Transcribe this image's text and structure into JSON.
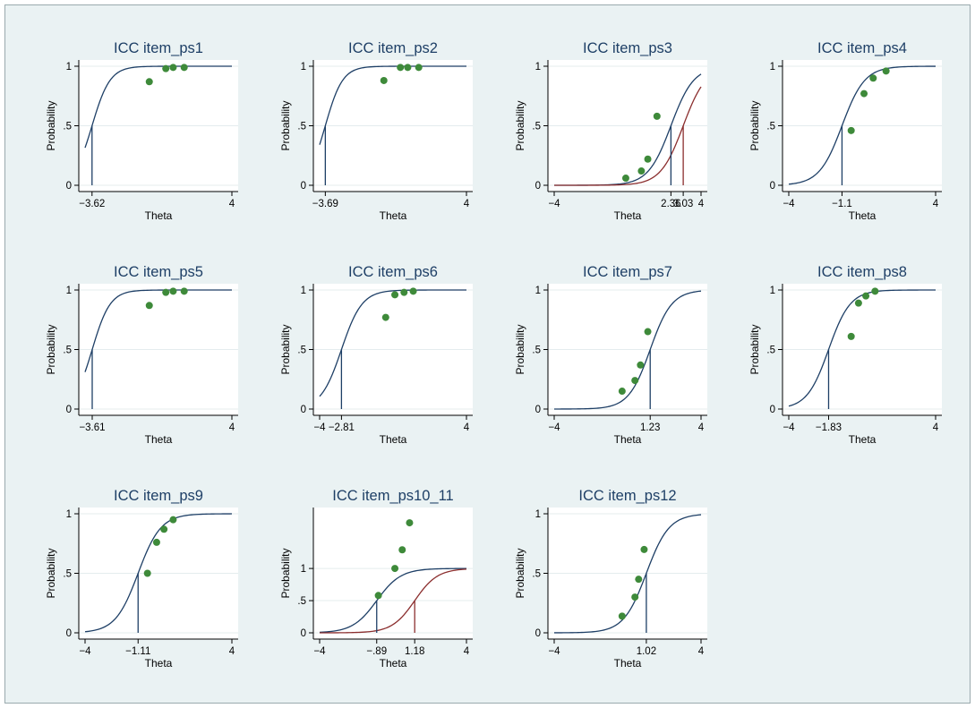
{
  "colors": {
    "panel_bg": "#ffffff",
    "figure_bg": "#eaf2f3",
    "curve_primary": "#1e3f66",
    "curve_secondary": "#8b2e2e",
    "points": "#3e8a3a",
    "grid": "#e4ecee"
  },
  "axis_text": {
    "xlabel": "Theta",
    "ylabel": "Probability"
  },
  "chart_data": [
    {
      "type": "line",
      "title": "ICC item_ps1",
      "xlabel": "Theta",
      "ylabel": "Probability",
      "xlim": [
        -4,
        4
      ],
      "ylim": [
        0,
        1
      ],
      "grid": true,
      "xticks": [
        {
          "v": -3.62,
          "t": "−3.62"
        },
        {
          "v": 4,
          "t": "4"
        }
      ],
      "yticks": [
        {
          "v": 0,
          "t": "0"
        },
        {
          "v": 0.5,
          "t": ".5"
        },
        {
          "v": 1,
          "t": "1"
        }
      ],
      "curves": [
        {
          "a": 1.2,
          "b": -3.62,
          "color": "primary"
        }
      ],
      "thresholds": [
        {
          "x": -3.62,
          "color": "primary"
        }
      ],
      "points": [
        [
          -0.5,
          0.87
        ],
        [
          0.4,
          0.98
        ],
        [
          0.8,
          0.99
        ],
        [
          1.4,
          0.99
        ]
      ]
    },
    {
      "type": "line",
      "title": "ICC item_ps2",
      "xlabel": "Theta",
      "ylabel": "Probability",
      "xlim": [
        -4,
        4
      ],
      "ylim": [
        0,
        1
      ],
      "grid": true,
      "xticks": [
        {
          "v": -3.69,
          "t": "−3.69"
        },
        {
          "v": 4,
          "t": "4"
        }
      ],
      "yticks": [
        {
          "v": 0,
          "t": "0"
        },
        {
          "v": 0.5,
          "t": ".5"
        },
        {
          "v": 1,
          "t": "1"
        }
      ],
      "curves": [
        {
          "a": 1.25,
          "b": -3.69,
          "color": "primary"
        }
      ],
      "thresholds": [
        {
          "x": -3.69,
          "color": "primary"
        }
      ],
      "points": [
        [
          -0.5,
          0.88
        ],
        [
          0.4,
          0.99
        ],
        [
          0.8,
          0.99
        ],
        [
          1.4,
          0.99
        ]
      ]
    },
    {
      "type": "line",
      "title": "ICC item_ps3",
      "xlabel": "Theta",
      "ylabel": "Probability",
      "xlim": [
        -4,
        4
      ],
      "ylim": [
        0,
        1
      ],
      "grid": true,
      "xticks": [
        {
          "v": -4,
          "t": "−4"
        },
        {
          "v": 2.36,
          "t": "2.36"
        },
        {
          "v": 3.03,
          "t": "3.03"
        },
        {
          "v": 4,
          "t": "4"
        }
      ],
      "yticks": [
        {
          "v": 0,
          "t": "0"
        },
        {
          "v": 0.5,
          "t": ".5"
        },
        {
          "v": 1,
          "t": "1"
        }
      ],
      "curves": [
        {
          "a": 0.95,
          "b": 2.36,
          "color": "primary"
        },
        {
          "a": 0.95,
          "b": 3.03,
          "color": "secondary"
        }
      ],
      "thresholds": [
        {
          "x": 2.36,
          "color": "primary"
        },
        {
          "x": 3.03,
          "color": "secondary"
        }
      ],
      "points": [
        [
          -0.1,
          0.06
        ],
        [
          0.75,
          0.12
        ],
        [
          1.1,
          0.22
        ],
        [
          1.6,
          0.58
        ]
      ]
    },
    {
      "type": "line",
      "title": "ICC item_ps4",
      "xlabel": "Theta",
      "ylabel": "Probability",
      "xlim": [
        -4,
        4
      ],
      "ylim": [
        0,
        1
      ],
      "grid": true,
      "xticks": [
        {
          "v": -4,
          "t": "−4"
        },
        {
          "v": -1.1,
          "t": "−1.1"
        },
        {
          "v": 4,
          "t": "4"
        }
      ],
      "yticks": [
        {
          "v": 0,
          "t": "0"
        },
        {
          "v": 0.5,
          "t": ".5"
        },
        {
          "v": 1,
          "t": "1"
        }
      ],
      "curves": [
        {
          "a": 0.95,
          "b": -1.1,
          "color": "primary"
        }
      ],
      "thresholds": [
        {
          "x": -1.1,
          "color": "primary"
        }
      ],
      "points": [
        [
          -0.6,
          0.46
        ],
        [
          0.1,
          0.77
        ],
        [
          0.6,
          0.9
        ],
        [
          1.3,
          0.96
        ]
      ]
    },
    {
      "type": "line",
      "title": "ICC item_ps5",
      "xlabel": "Theta",
      "ylabel": "Probability",
      "xlim": [
        -4,
        4
      ],
      "ylim": [
        0,
        1
      ],
      "grid": true,
      "xticks": [
        {
          "v": -3.61,
          "t": "−3.61"
        },
        {
          "v": 4,
          "t": "4"
        }
      ],
      "yticks": [
        {
          "v": 0,
          "t": "0"
        },
        {
          "v": 0.5,
          "t": ".5"
        },
        {
          "v": 1,
          "t": "1"
        }
      ],
      "curves": [
        {
          "a": 1.2,
          "b": -3.61,
          "color": "primary"
        }
      ],
      "thresholds": [
        {
          "x": -3.61,
          "color": "primary"
        }
      ],
      "points": [
        [
          -0.5,
          0.87
        ],
        [
          0.4,
          0.98
        ],
        [
          0.8,
          0.99
        ],
        [
          1.4,
          0.99
        ]
      ]
    },
    {
      "type": "line",
      "title": "ICC item_ps6",
      "xlabel": "Theta",
      "ylabel": "Probability",
      "xlim": [
        -4,
        4
      ],
      "ylim": [
        0,
        1
      ],
      "grid": true,
      "xticks": [
        {
          "v": -4,
          "t": "−4"
        },
        {
          "v": -2.81,
          "t": "−2.81"
        },
        {
          "v": 4,
          "t": "4"
        }
      ],
      "yticks": [
        {
          "v": 0,
          "t": "0"
        },
        {
          "v": 0.5,
          "t": ".5"
        },
        {
          "v": 1,
          "t": "1"
        }
      ],
      "curves": [
        {
          "a": 1.05,
          "b": -2.81,
          "color": "primary"
        }
      ],
      "thresholds": [
        {
          "x": -2.81,
          "color": "primary"
        }
      ],
      "points": [
        [
          -0.4,
          0.77
        ],
        [
          0.1,
          0.96
        ],
        [
          0.6,
          0.98
        ],
        [
          1.1,
          0.99
        ]
      ]
    },
    {
      "type": "line",
      "title": "ICC item_ps7",
      "xlabel": "Theta",
      "ylabel": "Probability",
      "xlim": [
        -4,
        4
      ],
      "ylim": [
        0,
        1
      ],
      "grid": true,
      "xticks": [
        {
          "v": -4,
          "t": "−4"
        },
        {
          "v": 1.23,
          "t": "1.23"
        },
        {
          "v": 4,
          "t": "4"
        }
      ],
      "yticks": [
        {
          "v": 0,
          "t": "0"
        },
        {
          "v": 0.5,
          "t": ".5"
        },
        {
          "v": 1,
          "t": "1"
        }
      ],
      "curves": [
        {
          "a": 1.0,
          "b": 1.23,
          "color": "primary"
        }
      ],
      "thresholds": [
        {
          "x": 1.23,
          "color": "primary"
        }
      ],
      "points": [
        [
          -0.3,
          0.15
        ],
        [
          0.4,
          0.24
        ],
        [
          0.7,
          0.37
        ],
        [
          1.1,
          0.65
        ]
      ]
    },
    {
      "type": "line",
      "title": "ICC item_ps8",
      "xlabel": "Theta",
      "ylabel": "Probability",
      "xlim": [
        -4,
        4
      ],
      "ylim": [
        0,
        1
      ],
      "grid": true,
      "xticks": [
        {
          "v": -4,
          "t": "−4"
        },
        {
          "v": -1.83,
          "t": "−1.83"
        },
        {
          "v": 4,
          "t": "4"
        }
      ],
      "yticks": [
        {
          "v": 0,
          "t": "0"
        },
        {
          "v": 0.5,
          "t": ".5"
        },
        {
          "v": 1,
          "t": "1"
        }
      ],
      "curves": [
        {
          "a": 1.0,
          "b": -1.83,
          "color": "primary"
        }
      ],
      "thresholds": [
        {
          "x": -1.83,
          "color": "primary"
        }
      ],
      "points": [
        [
          -0.6,
          0.61
        ],
        [
          -0.2,
          0.89
        ],
        [
          0.2,
          0.95
        ],
        [
          0.7,
          0.99
        ]
      ]
    },
    {
      "type": "line",
      "title": "ICC item_ps9",
      "xlabel": "Theta",
      "ylabel": "Probability",
      "xlim": [
        -4,
        4
      ],
      "ylim": [
        0,
        1
      ],
      "grid": true,
      "xticks": [
        {
          "v": -4,
          "t": "−4"
        },
        {
          "v": -1.11,
          "t": "−1.11"
        },
        {
          "v": 4,
          "t": "4"
        }
      ],
      "yticks": [
        {
          "v": 0,
          "t": "0"
        },
        {
          "v": 0.5,
          "t": ".5"
        },
        {
          "v": 1,
          "t": "1"
        }
      ],
      "curves": [
        {
          "a": 0.95,
          "b": -1.11,
          "color": "primary"
        }
      ],
      "thresholds": [
        {
          "x": -1.11,
          "color": "primary"
        }
      ],
      "points": [
        [
          -0.6,
          0.5
        ],
        [
          -0.1,
          0.76
        ],
        [
          0.3,
          0.87
        ],
        [
          0.8,
          0.95
        ]
      ]
    },
    {
      "type": "line",
      "title": "ICC item_ps10_11",
      "xlabel": "Theta",
      "ylabel": "Probability",
      "xlim": [
        -4,
        4
      ],
      "ylim": [
        0,
        1.85
      ],
      "grid": true,
      "xticks": [
        {
          "v": -4,
          "t": "−4"
        },
        {
          "v": -0.89,
          "t": "−.89"
        },
        {
          "v": 1.18,
          "t": "1.18"
        },
        {
          "v": 4,
          "t": "4"
        }
      ],
      "yticks": [
        {
          "v": 0,
          "t": "0"
        },
        {
          "v": 0.5,
          "t": ".5"
        },
        {
          "v": 1,
          "t": "1"
        }
      ],
      "curves": [
        {
          "a": 0.9,
          "b": -0.89,
          "color": "primary"
        },
        {
          "a": 0.95,
          "b": 1.18,
          "color": "secondary"
        }
      ],
      "thresholds": [
        {
          "x": -0.89,
          "color": "primary"
        },
        {
          "x": 1.18,
          "color": "secondary"
        }
      ],
      "points": [
        [
          -0.8,
          0.58
        ],
        [
          0.1,
          1.0
        ],
        [
          0.5,
          1.29
        ],
        [
          0.9,
          1.71
        ]
      ]
    },
    {
      "type": "line",
      "title": "ICC item_ps12",
      "xlabel": "Theta",
      "ylabel": "Probability",
      "xlim": [
        -4,
        4
      ],
      "ylim": [
        0,
        1
      ],
      "grid": true,
      "xticks": [
        {
          "v": -4,
          "t": "−4"
        },
        {
          "v": 1.02,
          "t": "1.02"
        },
        {
          "v": 4,
          "t": "4"
        }
      ],
      "yticks": [
        {
          "v": 0,
          "t": "0"
        },
        {
          "v": 0.5,
          "t": ".5"
        },
        {
          "v": 1,
          "t": "1"
        }
      ],
      "curves": [
        {
          "a": 0.95,
          "b": 1.02,
          "color": "primary"
        }
      ],
      "thresholds": [
        {
          "x": 1.02,
          "color": "primary"
        }
      ],
      "points": [
        [
          -0.3,
          0.14
        ],
        [
          0.4,
          0.3
        ],
        [
          0.6,
          0.45
        ],
        [
          0.9,
          0.7
        ]
      ]
    }
  ]
}
